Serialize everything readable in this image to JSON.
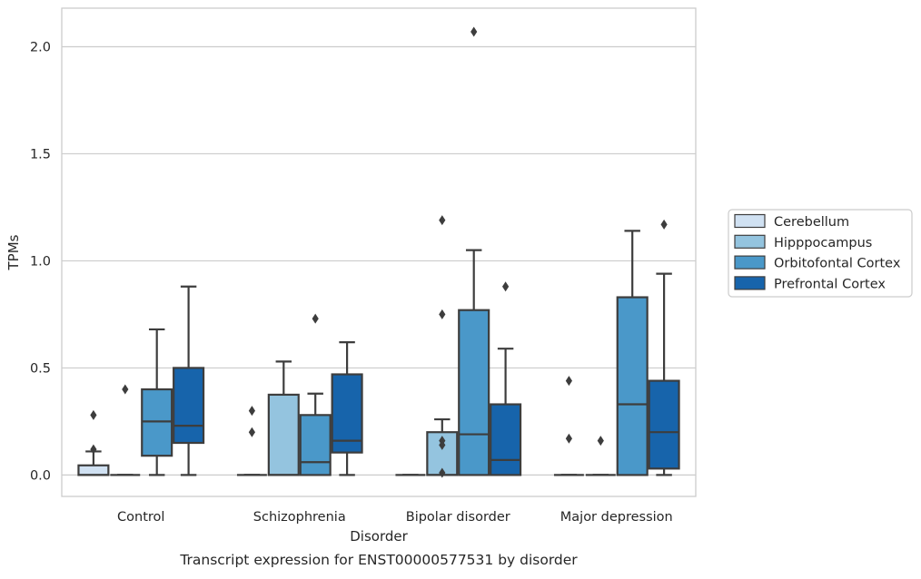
{
  "chart_data": {
    "type": "box",
    "title": "Transcript expression for ENST00000577531 by disorder",
    "xlabel": "Disorder",
    "ylabel": "TPMs",
    "ylim": [
      -0.1,
      2.18
    ],
    "yticks": [
      0.0,
      0.5,
      1.0,
      1.5,
      2.0
    ],
    "ytick_labels": [
      "0.0",
      "0.5",
      "1.0",
      "1.5",
      "2.0"
    ],
    "grid": "horizontal",
    "legend_position": "right",
    "categories": [
      "Control",
      "Schizophrenia",
      "Bipolar disorder",
      "Major depression"
    ],
    "series": [
      {
        "name": "Cerebellum",
        "color": "#d0e1f2",
        "boxes": [
          {
            "min": 0.0,
            "q1": 0.0,
            "median": 0.0,
            "q3": 0.045,
            "max": 0.11,
            "outliers": [
              0.28,
              0.12
            ]
          },
          {
            "min": 0.0,
            "q1": 0.0,
            "median": 0.0,
            "q3": 0.0,
            "max": 0.0,
            "outliers": [
              0.3,
              0.2
            ]
          },
          {
            "min": 0.0,
            "q1": 0.0,
            "median": 0.0,
            "q3": 0.0,
            "max": 0.0,
            "outliers": []
          },
          {
            "min": 0.0,
            "q1": 0.0,
            "median": 0.0,
            "q3": 0.0,
            "max": 0.0,
            "outliers": [
              0.44,
              0.17
            ]
          }
        ]
      },
      {
        "name": "Hipppocampus",
        "color": "#94c4df",
        "boxes": [
          {
            "min": 0.0,
            "q1": 0.0,
            "median": 0.0,
            "q3": 0.0,
            "max": 0.0,
            "outliers": [
              0.4
            ]
          },
          {
            "min": 0.0,
            "q1": 0.0,
            "median": 0.0,
            "q3": 0.375,
            "max": 0.53,
            "outliers": []
          },
          {
            "min": 0.0,
            "q1": 0.0,
            "median": 0.0,
            "q3": 0.2,
            "max": 0.26,
            "outliers": [
              0.16,
              0.14,
              0.01,
              1.19,
              0.75
            ]
          },
          {
            "min": 0.0,
            "q1": 0.0,
            "median": 0.0,
            "q3": 0.0,
            "max": 0.0,
            "outliers": [
              0.16
            ]
          }
        ]
      },
      {
        "name": "Orbitofontal Cortex",
        "color": "#4a98c9",
        "boxes": [
          {
            "min": 0.0,
            "q1": 0.09,
            "median": 0.25,
            "q3": 0.4,
            "max": 0.68,
            "outliers": []
          },
          {
            "min": 0.0,
            "q1": 0.0,
            "median": 0.06,
            "q3": 0.28,
            "max": 0.38,
            "outliers": [
              0.73
            ]
          },
          {
            "min": 0.0,
            "q1": 0.0,
            "median": 0.19,
            "q3": 0.77,
            "max": 1.05,
            "outliers": [
              2.07
            ]
          },
          {
            "min": 0.0,
            "q1": 0.0,
            "median": 0.33,
            "q3": 0.83,
            "max": 1.14,
            "outliers": []
          }
        ]
      },
      {
        "name": "Prefrontal Cortex",
        "color": "#1764ab",
        "boxes": [
          {
            "min": 0.0,
            "q1": 0.15,
            "median": 0.23,
            "q3": 0.5,
            "max": 0.88,
            "outliers": []
          },
          {
            "min": 0.0,
            "q1": 0.105,
            "median": 0.16,
            "q3": 0.47,
            "max": 0.62,
            "outliers": []
          },
          {
            "min": 0.0,
            "q1": 0.0,
            "median": 0.07,
            "q3": 0.33,
            "max": 0.59,
            "outliers": [
              0.88
            ]
          },
          {
            "min": 0.0,
            "q1": 0.03,
            "median": 0.2,
            "q3": 0.44,
            "max": 0.94,
            "outliers": [
              1.17
            ]
          }
        ]
      }
    ]
  }
}
